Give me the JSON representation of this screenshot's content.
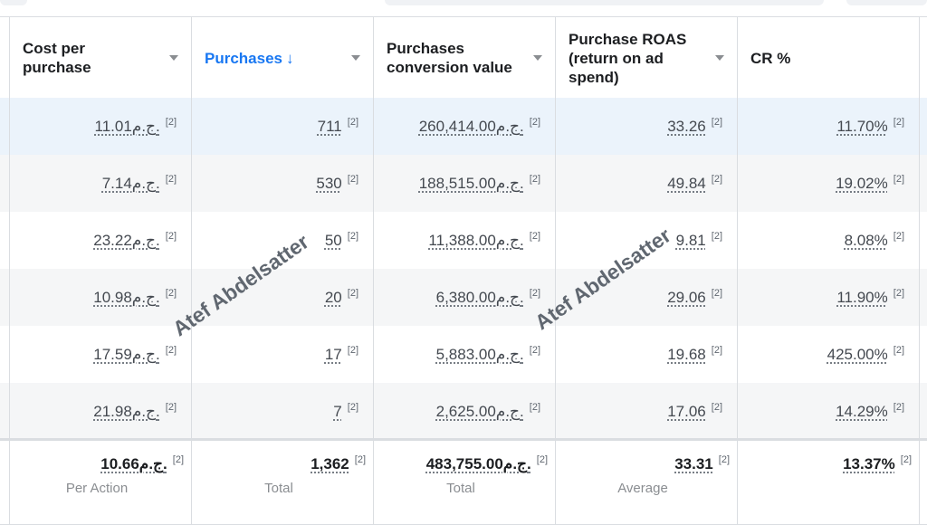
{
  "columns": [
    {
      "label": "Cost per\npurchase",
      "sorted": false
    },
    {
      "label": "Purchases",
      "sorted": true,
      "sort_icon": "arrow-down-icon"
    },
    {
      "label": "Purchases\nconversion value",
      "sorted": false
    },
    {
      "label": "Purchase ROAS\n(return on ad\nspend)",
      "sorted": false
    },
    {
      "label": "CR %",
      "sorted": false
    }
  ],
  "reference_mark": "[2]",
  "rows": [
    {
      "cost_per_purchase": "11.01ج.م.",
      "purchases": "711",
      "conversion_value": "260,414.00ج.م.",
      "roas": "33.26",
      "cr": "11.70%"
    },
    {
      "cost_per_purchase": "7.14ج.م.",
      "purchases": "530",
      "conversion_value": "188,515.00ج.م.",
      "roas": "49.84",
      "cr": "19.02%"
    },
    {
      "cost_per_purchase": "23.22ج.م.",
      "purchases": "50",
      "conversion_value": "11,388.00ج.م.",
      "roas": "9.81",
      "cr": "8.08%"
    },
    {
      "cost_per_purchase": "10.98ج.م.",
      "purchases": "20",
      "conversion_value": "6,380.00ج.م.",
      "roas": "29.06",
      "cr": "11.90%"
    },
    {
      "cost_per_purchase": "17.59ج.م.",
      "purchases": "17",
      "conversion_value": "5,883.00ج.م.",
      "roas": "19.68",
      "cr": "425.00%"
    },
    {
      "cost_per_purchase": "21.98ج.م.",
      "purchases": "7",
      "conversion_value": "2,625.00ج.م.",
      "roas": "17.06",
      "cr": "14.29%"
    }
  ],
  "totals": {
    "cost_per_purchase": {
      "value": "10.66ج.م.",
      "caption": "Per Action"
    },
    "purchases": {
      "value": "1,362",
      "caption": "Total"
    },
    "conversion_value": {
      "value": "483,755.00ج.م.",
      "caption": "Total"
    },
    "roas": {
      "value": "33.31",
      "caption": "Average"
    },
    "cr": {
      "value": "13.37%",
      "caption": ""
    }
  },
  "watermark": "Atef Abdelsatter",
  "colors": {
    "sorted_header": "#1877f2",
    "selected_row": "#ebf3fb",
    "alt_row": "#f5f6f7"
  }
}
